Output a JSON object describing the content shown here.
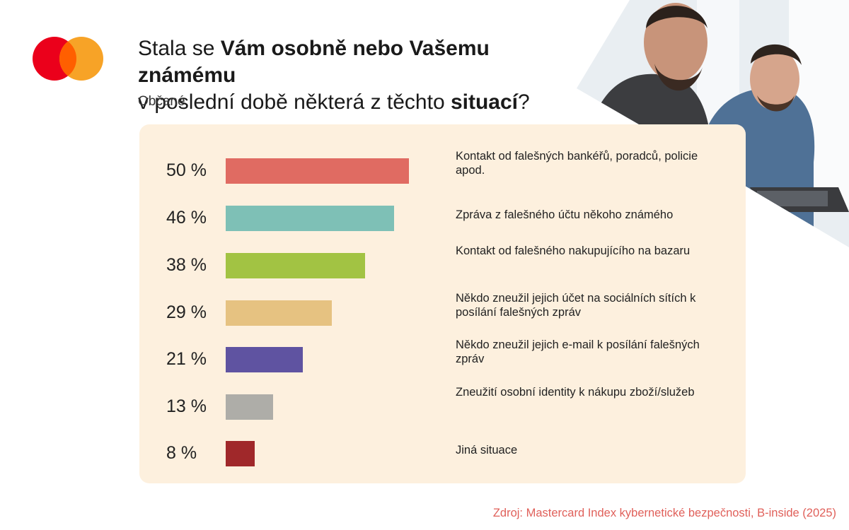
{
  "logo": {
    "name": "mastercard-logo"
  },
  "header": {
    "title_parts": [
      {
        "text": "Stala se ",
        "bold": false
      },
      {
        "text": "Vám osobně nebo Vašemu známému",
        "bold": true
      },
      {
        "text": "\nv poslední době některá z těchto ",
        "bold": false
      },
      {
        "text": "situací",
        "bold": true
      },
      {
        "text": "?",
        "bold": false
      }
    ],
    "subtitle": "Občané"
  },
  "chart_data": {
    "type": "bar",
    "orientation": "horizontal",
    "unit": "%",
    "xlim": [
      0,
      58
    ],
    "categories": [
      "Kontakt od falešných bankéřů, poradců, policie apod.",
      "Zpráva z falešného účtu někoho známého",
      "Kontakt od falešného nakupujícího na bazaru",
      "Někdo zneužil jejich účet na sociálních sítích k posílání falešných zpráv",
      "Někdo zneužil jejich e-mail k posílání falešných zpráv",
      "Zneužití osobní identity k nákupu zboží/služeb",
      "Jiná situace"
    ],
    "values": [
      50,
      46,
      38,
      29,
      21,
      13,
      8
    ],
    "value_labels": [
      "50 %",
      "46 %",
      "38 %",
      "29 %",
      "21 %",
      "13 %",
      "8 %"
    ],
    "colors": [
      "#E06B62",
      "#7EC0B6",
      "#A2C343",
      "#E6C281",
      "#5F53A1",
      "#AEADA8",
      "#A0282A"
    ],
    "grid": false,
    "legend": "none"
  },
  "footer": {
    "source": "Zdroj: Mastercard Index kybernetické bezpečnosti, B-inside (2025)"
  }
}
